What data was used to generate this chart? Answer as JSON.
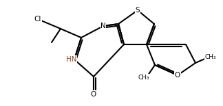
{
  "bg": "#ffffff",
  "lc": "#000000",
  "lw": 1.5,
  "lw2": 1.2,
  "figsize": [
    3.24,
    1.55
  ],
  "dpi": 100,
  "atoms": {
    "S": {
      "label": "S",
      "color": "#000000",
      "fs": 7
    },
    "N": {
      "label": "N",
      "color": "#000000",
      "fs": 7
    },
    "HN": {
      "label": "HN",
      "color": "#8B4513",
      "fs": 7
    },
    "O_ketone": {
      "label": "O",
      "color": "#000000",
      "fs": 7
    },
    "O_furan": {
      "label": "O",
      "color": "#000000",
      "fs": 7
    },
    "Cl": {
      "label": "Cl",
      "color": "#000000",
      "fs": 7
    }
  }
}
